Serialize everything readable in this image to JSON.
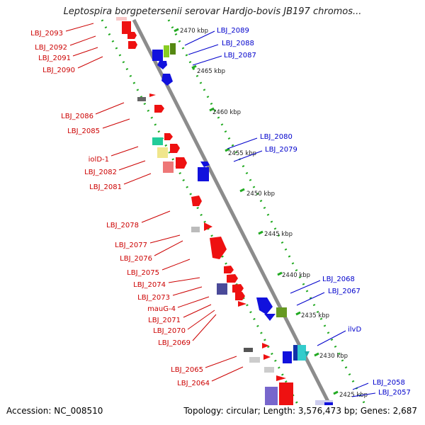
{
  "title": "Leptospira borgpetersenii serovar Hardjo-bovis JB197 chromos...",
  "footer": {
    "accession": "Accession: NC_008510",
    "summary": "Topology: circular; Length: 3,576,473 bp; Genes: 2,687"
  },
  "colors": {
    "forward": "#ee1111",
    "reverse": "#1111dd",
    "left_label": "#cc0000",
    "right_label": "#0000cc",
    "backbone": "#888888",
    "dots": "#22aa22"
  },
  "ticks": [
    "2470 kbp",
    "2465 kbp",
    "2460 kbp",
    "2455 kbp",
    "2450 kbp",
    "2445 kbp",
    "2440 kbp",
    "2435 kbp",
    "2430 kbp",
    "2425 kbp"
  ],
  "left_labels": [
    "LBJ_2093",
    "LBJ_2092",
    "LBJ_2091",
    "LBJ_2090",
    "LBJ_2086",
    "LBJ_2085",
    "iolD-1",
    "LBJ_2082",
    "LBJ_2081",
    "LBJ_2078",
    "LBJ_2077",
    "LBJ_2076",
    "LBJ_2075",
    "LBJ_2074",
    "LBJ_2073",
    "mauG-4",
    "LBJ_2071",
    "LBJ_2070",
    "LBJ_2069",
    "LBJ_2065",
    "LBJ_2064"
  ],
  "right_labels": [
    "LBJ_2089",
    "LBJ_2088",
    "LBJ_2087",
    "LBJ_2080",
    "LBJ_2079",
    "LBJ_2068",
    "LBJ_2067",
    "ilvD",
    "LBJ_2058",
    "LBJ_2057"
  ]
}
